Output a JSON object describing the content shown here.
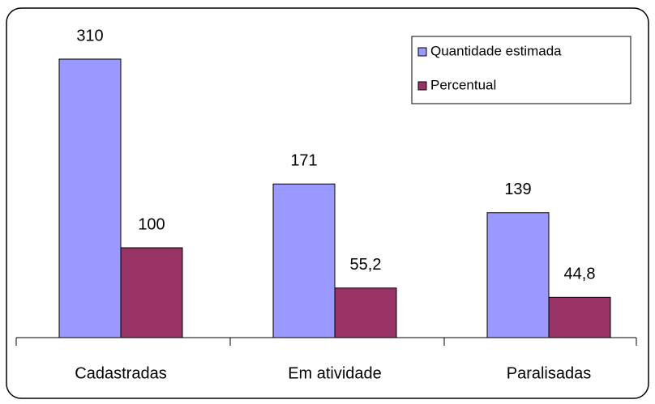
{
  "chart_data": {
    "type": "bar",
    "categories": [
      "Cadastradas",
      "Em atividade",
      "Paralisadas"
    ],
    "series": [
      {
        "name": "Quantidade estimada",
        "color": "#9999ff",
        "values": [
          310,
          171,
          139
        ]
      },
      {
        "name": "Percentual",
        "color": "#993366",
        "values": [
          100,
          55.2,
          44.8
        ],
        "value_labels": [
          "100",
          "55,2",
          "44,8"
        ]
      }
    ],
    "ylim": [
      0,
      350
    ],
    "legend": "top-right"
  }
}
